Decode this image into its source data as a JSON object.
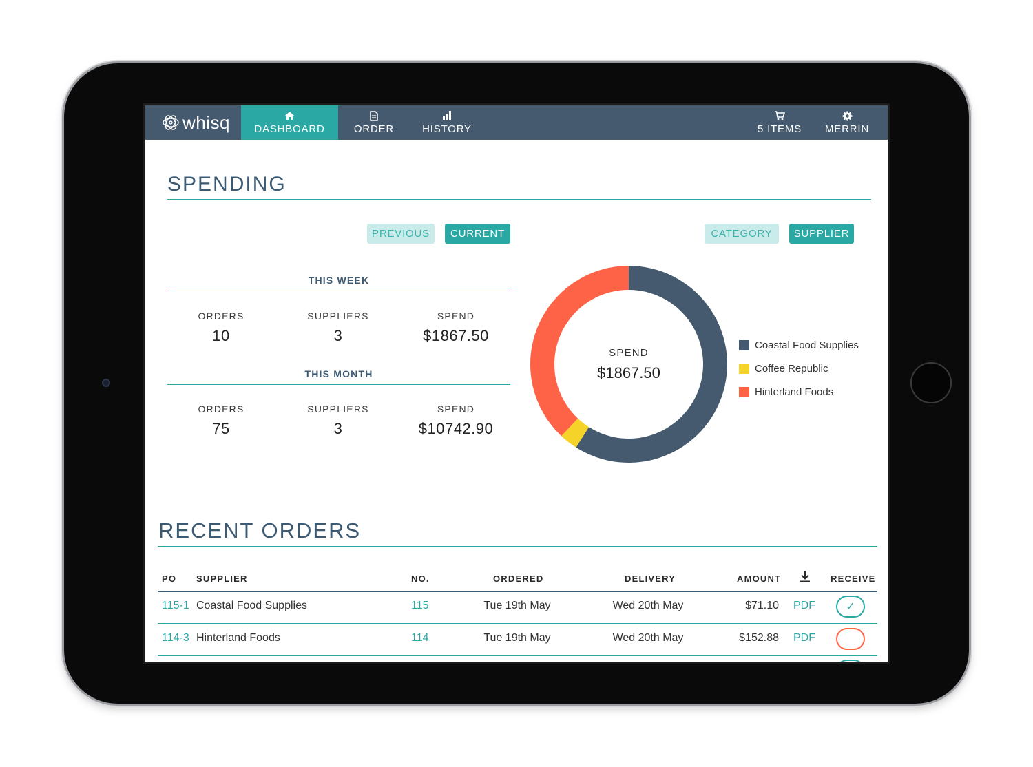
{
  "app": {
    "logo_text": "whisq"
  },
  "nav": {
    "dashboard": "DASHBOARD",
    "order": "ORDER",
    "history": "HISTORY",
    "cart": "5 ITEMS",
    "user": "MERRIN"
  },
  "spending": {
    "title": "SPENDING",
    "period_toggle": {
      "previous": "PREVIOUS",
      "current": "CURRENT",
      "selected": "CURRENT"
    },
    "group_toggle": {
      "category": "CATEGORY",
      "supplier": "SUPPLIER",
      "selected": "SUPPLIER"
    },
    "this_week": {
      "title": "THIS WEEK",
      "orders_label": "ORDERS",
      "orders": "10",
      "suppliers_label": "SUPPLIERS",
      "suppliers": "3",
      "spend_label": "SPEND",
      "spend": "$1867.50"
    },
    "this_month": {
      "title": "THIS MONTH",
      "orders_label": "ORDERS",
      "orders": "75",
      "suppliers_label": "SUPPLIERS",
      "suppliers": "3",
      "spend_label": "SPEND",
      "spend": "$10742.90"
    }
  },
  "chart_data": {
    "type": "pie",
    "center_label": "SPEND",
    "center_value": "$1867.50",
    "categories": [
      "Coastal Food Supplies",
      "Coffee Republic",
      "Hinterland Foods"
    ],
    "values": [
      59,
      3,
      38
    ],
    "colors": [
      "#455a6e",
      "#f5d328",
      "#ff6347"
    ],
    "legend_position": "right"
  },
  "recent_orders": {
    "title": "RECENT ORDERS",
    "columns": {
      "po": "PO",
      "supplier": "SUPPLIER",
      "no": "NO.",
      "ordered": "ORDERED",
      "delivery": "DELIVERY",
      "amount": "AMOUNT",
      "download_icon": "download-icon",
      "receive": "RECEIVE"
    },
    "rows": [
      {
        "po": "115-1",
        "supplier": "Coastal Food Supplies",
        "no": "115",
        "ordered": "Tue 19th May",
        "delivery": "Wed 20th May",
        "amount": "$71.10",
        "doc": "PDF",
        "received": true
      },
      {
        "po": "114-3",
        "supplier": "Hinterland Foods",
        "no": "114",
        "ordered": "Tue 19th May",
        "delivery": "Wed 20th May",
        "amount": "$152.88",
        "doc": "PDF",
        "received": false
      }
    ]
  },
  "colors": {
    "nav": "#455a6e",
    "accent": "#2aa9a4",
    "alert": "#ff6347"
  }
}
